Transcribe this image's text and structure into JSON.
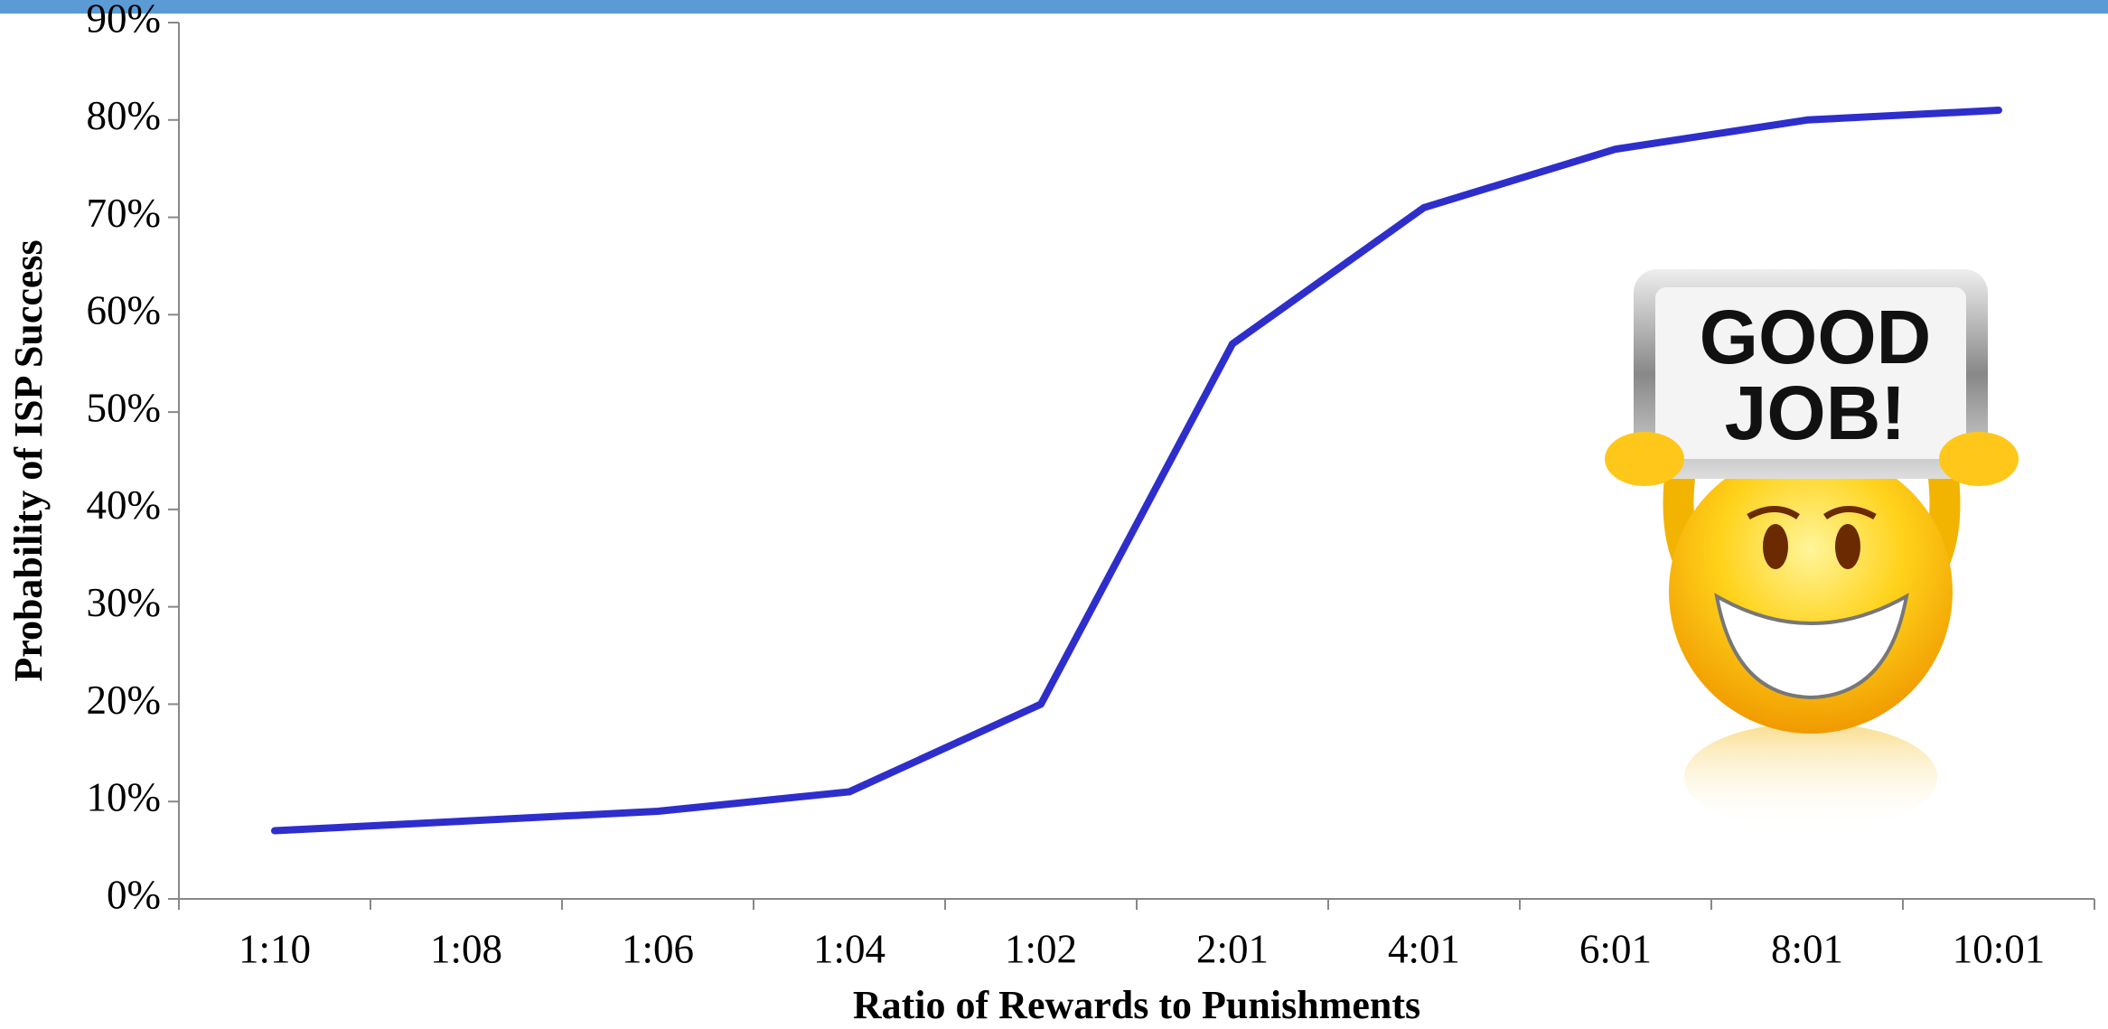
{
  "chart_data": {
    "type": "line",
    "x_label": "Ratio of Rewards to Punishments",
    "y_label": "Probability of ISP Success",
    "categories": [
      "1:10",
      "1:08",
      "1:06",
      "1:04",
      "1:02",
      "2:01",
      "4:01",
      "6:01",
      "8:01",
      "10:01"
    ],
    "series": [
      {
        "color": "#2e2ecc",
        "values": [
          7,
          8,
          9,
          11,
          20,
          57,
          71,
          77,
          80,
          81
        ]
      }
    ],
    "ylim": [
      0,
      90
    ],
    "yticks": [
      {
        "value": 0,
        "label": "0%"
      },
      {
        "value": 10,
        "label": "10%"
      },
      {
        "value": 20,
        "label": "20%"
      },
      {
        "value": 30,
        "label": "30%"
      },
      {
        "value": 40,
        "label": "40%"
      },
      {
        "value": 50,
        "label": "50%"
      },
      {
        "value": 60,
        "label": "60%"
      },
      {
        "value": 70,
        "label": "70%"
      },
      {
        "value": 80,
        "label": "80%"
      },
      {
        "value": 90,
        "label": "90%"
      }
    ],
    "grid": false,
    "annotations": [
      "GOOD",
      "JOB!"
    ]
  }
}
